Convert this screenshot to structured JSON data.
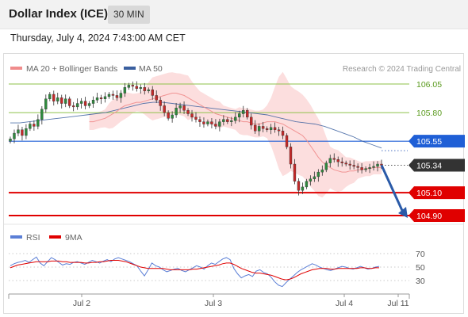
{
  "header": {
    "title": "Dollar Index (ICE)",
    "timeframe": "30 MIN",
    "datetime": "Thursday, July 4, 2024 7:43:00 AM CET"
  },
  "legend": {
    "ma20_label": "MA 20 + Bollinger Bands",
    "ma20_color": "#f08c8c",
    "ma50_label": "MA 50",
    "ma50_color": "#3a5f9f",
    "credit": "Research © 2024 Trading Central"
  },
  "rsi_legend": {
    "rsi_label": "RSI",
    "rsi_color": "#5b7fd6",
    "ma9_label": "9MA",
    "ma9_color": "#e00000"
  },
  "chart_data": {
    "type": "candlestick",
    "price_range": [
      104.87,
      106.1
    ],
    "x_ticks": [
      "Jul 2",
      "Jul 3",
      "Jul 4",
      "Jul 11"
    ],
    "levels": [
      {
        "label": "106.05",
        "value": 106.05,
        "kind": "resistance",
        "color": "#8ec24a",
        "text_color": "#5a9a1e"
      },
      {
        "label": "105.80",
        "value": 105.8,
        "kind": "resistance",
        "color": "#8ec24a",
        "text_color": "#5a9a1e"
      },
      {
        "label": "105.55",
        "value": 105.55,
        "kind": "pivot",
        "color": "#1f5fd6",
        "text_color": "#ffffff"
      },
      {
        "label": "105.34",
        "value": 105.34,
        "kind": "last",
        "color": "#333333",
        "text_color": "#ffffff"
      },
      {
        "label": "105.10",
        "value": 105.1,
        "kind": "support",
        "color": "#e00000",
        "text_color": "#ffffff"
      },
      {
        "label": "104.90",
        "value": 104.9,
        "kind": "support",
        "color": "#e00000",
        "text_color": "#ffffff"
      }
    ],
    "close": [
      105.57,
      105.62,
      105.65,
      105.6,
      105.66,
      105.7,
      105.68,
      105.74,
      105.83,
      105.92,
      105.96,
      105.9,
      105.93,
      105.88,
      105.92,
      105.86,
      105.85,
      105.88,
      105.9,
      105.86,
      105.88,
      105.91,
      105.93,
      105.92,
      105.94,
      105.96,
      105.95,
      105.93,
      105.97,
      106.02,
      106.04,
      106.03,
      106.01,
      106.02,
      105.99,
      106.0,
      105.95,
      105.91,
      105.86,
      105.8,
      105.75,
      105.78,
      105.84,
      105.86,
      105.82,
      105.79,
      105.76,
      105.74,
      105.72,
      105.7,
      105.72,
      105.7,
      105.68,
      105.72,
      105.74,
      105.72,
      105.73,
      105.76,
      105.79,
      105.82,
      105.76,
      105.69,
      105.64,
      105.68,
      105.66,
      105.65,
      105.67,
      105.65,
      105.64,
      105.6,
      105.5,
      105.35,
      105.2,
      105.12,
      105.15,
      105.2,
      105.22,
      105.24,
      105.28,
      105.3,
      105.36,
      105.4,
      105.39,
      105.37,
      105.36,
      105.35,
      105.34,
      105.33,
      105.32,
      105.3,
      105.31,
      105.32,
      105.33,
      105.35,
      105.34
    ],
    "ma20": [
      105.72,
      105.72,
      105.73,
      105.74,
      105.75,
      105.77,
      105.79,
      105.81,
      105.84,
      105.86,
      105.87,
      105.88,
      105.89,
      105.89,
      105.9,
      105.91,
      105.92,
      105.93,
      105.94,
      105.95,
      105.96,
      105.97,
      105.97,
      105.96,
      105.95,
      105.93,
      105.91,
      105.89,
      105.87,
      105.85,
      105.83,
      105.81,
      105.79,
      105.78,
      105.77,
      105.76,
      105.75,
      105.74,
      105.73,
      105.72,
      105.72,
      105.71,
      105.7,
      105.7,
      105.71,
      105.72,
      105.72,
      105.72,
      105.71,
      105.7,
      105.68,
      105.66,
      105.64,
      105.62,
      105.6,
      105.56,
      105.51,
      105.46,
      105.41,
      105.37,
      105.34,
      105.32,
      105.3,
      105.29,
      105.28,
      105.28,
      105.29,
      105.29,
      105.3,
      105.3,
      105.31,
      105.31,
      105.32,
      105.32,
      105.32
    ],
    "ma50": [
      105.71,
      105.71,
      105.72,
      105.73,
      105.74,
      105.75,
      105.76,
      105.77,
      105.78,
      105.79,
      105.8,
      105.82,
      105.84,
      105.86,
      105.88,
      105.89,
      105.89,
      105.88,
      105.87,
      105.86,
      105.85,
      105.84,
      105.83,
      105.82,
      105.81,
      105.8,
      105.79,
      105.78,
      105.76,
      105.74,
      105.72,
      105.71,
      105.7,
      105.68,
      105.65,
      105.62,
      105.59,
      105.55,
      105.52,
      105.49
    ],
    "rsi_range": [
      0,
      100
    ],
    "rsi_ticks": [
      70,
      50,
      30
    ],
    "rsi": [
      52,
      55,
      57,
      58,
      60,
      57,
      61,
      65,
      56,
      52,
      58,
      64,
      61,
      57,
      53,
      55,
      54,
      57,
      58,
      56,
      54,
      57,
      60,
      58,
      56,
      59,
      61,
      58,
      62,
      64,
      62,
      60,
      58,
      55,
      52,
      44,
      37,
      46,
      56,
      52,
      50,
      46,
      43,
      45,
      47,
      48,
      45,
      43,
      46,
      49,
      52,
      50,
      47,
      52,
      56,
      54,
      58,
      62,
      64,
      61,
      48,
      40,
      34,
      37,
      39,
      36,
      44,
      46,
      42,
      40,
      35,
      28,
      23,
      21,
      27,
      32,
      37,
      42,
      46,
      49,
      52,
      55,
      53,
      50,
      48,
      46,
      45,
      47,
      49,
      51,
      50,
      48,
      47,
      49,
      51,
      49,
      47,
      48,
      50,
      51
    ],
    "rsi_ma9": [
      49,
      51,
      53,
      54,
      55,
      56,
      57,
      58,
      58,
      58,
      58,
      59,
      59,
      59,
      58,
      58,
      57,
      57,
      57,
      57,
      56,
      56,
      57,
      57,
      58,
      58,
      59,
      60,
      60,
      60,
      59,
      58,
      56,
      54,
      52,
      50,
      49,
      48,
      48,
      48,
      48,
      48,
      47,
      46,
      46,
      46,
      46,
      46,
      46,
      47,
      47,
      48,
      49,
      50,
      51,
      52,
      53,
      55,
      56,
      56,
      54,
      51,
      48,
      46,
      44,
      42,
      41,
      41,
      40,
      39,
      38,
      36,
      34,
      32,
      31,
      32,
      34,
      37,
      40,
      42,
      44,
      46,
      47,
      48,
      48,
      48,
      47,
      47,
      48,
      48,
      48,
      48,
      48,
      48,
      49,
      49,
      48,
      48,
      49,
      49
    ]
  }
}
